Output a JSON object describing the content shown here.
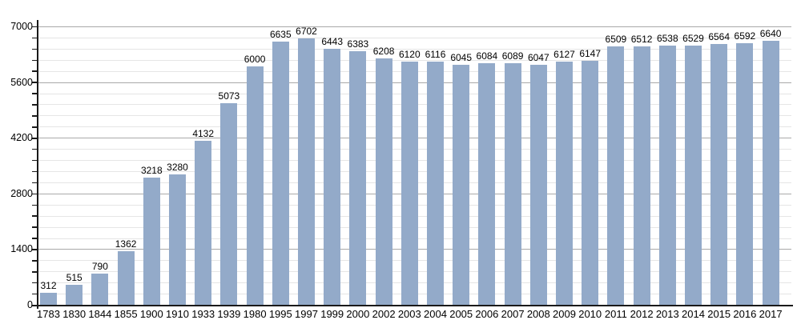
{
  "chart_data": {
    "type": "bar",
    "title": "",
    "xlabel": "",
    "ylabel": "",
    "categories": [
      "1783",
      "1830",
      "1844",
      "1855",
      "1900",
      "1910",
      "1933",
      "1939",
      "1980",
      "1995",
      "1997",
      "1999",
      "2000",
      "2002",
      "2003",
      "2004",
      "2005",
      "2006",
      "2007",
      "2008",
      "2009",
      "2010",
      "2011",
      "2012",
      "2013",
      "2014",
      "2015",
      "2016",
      "2017"
    ],
    "values": [
      312,
      515,
      790,
      1362,
      3218,
      3280,
      4132,
      5073,
      6000,
      6635,
      6702,
      6443,
      6383,
      6208,
      6120,
      6116,
      6045,
      6084,
      6089,
      6047,
      6127,
      6147,
      6509,
      6512,
      6538,
      6529,
      6564,
      6592,
      6640
    ],
    "value_labels_shown": true,
    "ylim": [
      0,
      7000
    ],
    "yticks": [
      0,
      1400,
      2800,
      4200,
      5600,
      7000
    ],
    "major_step": 1400,
    "minor_step": 280,
    "grid": "on",
    "legend": "none",
    "bar_color": "#93aac9",
    "major_grid_color": "#a9a9a9",
    "minor_grid_color": "#e5e5e5",
    "axis_color": "#1a1a1a",
    "label_color": "#000000",
    "background_color": "#ffffff"
  }
}
